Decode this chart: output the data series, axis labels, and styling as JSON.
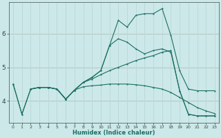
{
  "bg_color": "#cce8e8",
  "grid_color": "#b8d8d8",
  "line_color": "#1a6e62",
  "red_line_color": "#cc5555",
  "xlabel": "Humidex (Indice chaleur)",
  "x_ticks": [
    0,
    1,
    2,
    3,
    4,
    5,
    6,
    7,
    8,
    9,
    10,
    11,
    12,
    13,
    14,
    15,
    16,
    17,
    18,
    19,
    20,
    21,
    22,
    23
  ],
  "y_ticks": [
    4,
    5,
    6
  ],
  "ylim": [
    3.35,
    6.95
  ],
  "xlim": [
    -0.5,
    23.5
  ],
  "lines": [
    {
      "x": [
        0,
        1,
        2,
        3,
        4,
        5,
        6,
        7,
        8,
        9,
        10,
        11,
        12,
        13,
        14,
        15,
        16,
        17,
        18,
        19,
        20,
        21,
        22,
        23
      ],
      "y": [
        4.5,
        3.6,
        4.35,
        4.4,
        4.4,
        4.35,
        4.05,
        4.32,
        4.55,
        4.7,
        4.9,
        5.65,
        6.4,
        6.2,
        6.55,
        6.6,
        6.6,
        6.75,
        5.95,
        4.9,
        4.35,
        4.3,
        4.3,
        4.3
      ]
    },
    {
      "x": [
        2,
        3,
        4,
        5,
        6,
        7,
        8,
        9,
        10,
        11,
        12,
        13,
        14,
        15,
        16,
        17,
        18,
        19,
        20,
        21,
        22,
        23
      ],
      "y": [
        4.35,
        4.4,
        4.4,
        4.35,
        4.05,
        4.32,
        4.55,
        4.7,
        4.9,
        5.65,
        5.85,
        5.75,
        5.55,
        5.4,
        5.5,
        5.55,
        5.45,
        4.3,
        3.6,
        3.55,
        3.55,
        3.55
      ]
    },
    {
      "x": [
        2,
        3,
        4,
        5,
        6,
        7,
        8,
        9,
        10,
        11,
        12,
        13,
        14,
        15,
        16,
        17,
        18,
        19,
        20,
        21,
        22,
        23
      ],
      "y": [
        4.35,
        4.4,
        4.4,
        4.35,
        4.05,
        4.32,
        4.55,
        4.65,
        4.78,
        4.9,
        5.0,
        5.1,
        5.2,
        5.28,
        5.35,
        5.45,
        5.5,
        4.3,
        3.6,
        3.55,
        3.55,
        3.55
      ]
    },
    {
      "x": [
        0,
        1,
        2,
        3,
        4,
        5,
        6,
        7,
        8,
        9,
        10,
        11,
        12,
        13,
        14,
        15,
        16,
        17,
        18,
        19,
        20,
        21,
        22,
        23
      ],
      "y": [
        4.5,
        3.6,
        4.35,
        4.4,
        4.4,
        4.35,
        4.05,
        4.32,
        4.42,
        4.45,
        4.47,
        4.5,
        4.5,
        4.5,
        4.48,
        4.45,
        4.4,
        4.35,
        4.25,
        4.1,
        3.95,
        3.8,
        3.7,
        3.62
      ]
    }
  ],
  "hlines": [
    {
      "y": 4.0,
      "color": "#cc5555",
      "lw": 0.7
    },
    {
      "y": 5.0,
      "color": "#cc5555",
      "lw": 0.7
    },
    {
      "y": 6.0,
      "color": "#cc5555",
      "lw": 0.7
    }
  ]
}
